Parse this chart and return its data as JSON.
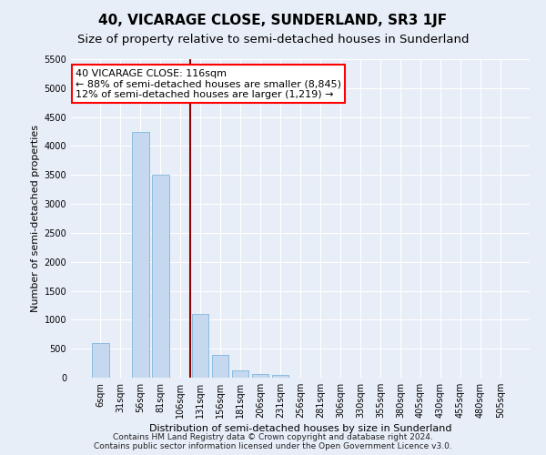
{
  "title": "40, VICARAGE CLOSE, SUNDERLAND, SR3 1JF",
  "subtitle": "Size of property relative to semi-detached houses in Sunderland",
  "xlabel": "Distribution of semi-detached houses by size in Sunderland",
  "ylabel": "Number of semi-detached properties",
  "categories": [
    "6sqm",
    "31sqm",
    "56sqm",
    "81sqm",
    "106sqm",
    "131sqm",
    "156sqm",
    "181sqm",
    "206sqm",
    "231sqm",
    "256sqm",
    "281sqm",
    "306sqm",
    "330sqm",
    "355sqm",
    "380sqm",
    "405sqm",
    "430sqm",
    "455sqm",
    "480sqm",
    "505sqm"
  ],
  "values": [
    600,
    0,
    4250,
    3500,
    0,
    1100,
    400,
    130,
    70,
    55,
    0,
    0,
    0,
    0,
    0,
    0,
    0,
    0,
    0,
    0,
    0
  ],
  "bar_color": "#c5d8f0",
  "bar_edgecolor": "#6baed6",
  "vline_color": "#8b0000",
  "vline_position": 4.5,
  "annotation_text": "40 VICARAGE CLOSE: 116sqm\n← 88% of semi-detached houses are smaller (8,845)\n12% of semi-detached houses are larger (1,219) →",
  "annotation_box_facecolor": "white",
  "annotation_box_edgecolor": "red",
  "ylim": [
    0,
    5500
  ],
  "yticks": [
    0,
    500,
    1000,
    1500,
    2000,
    2500,
    3000,
    3500,
    4000,
    4500,
    5000,
    5500
  ],
  "footnote": "Contains HM Land Registry data © Crown copyright and database right 2024.\nContains public sector information licensed under the Open Government Licence v3.0.",
  "bg_color": "#e8eef8",
  "grid_color": "#ffffff",
  "title_fontsize": 11,
  "subtitle_fontsize": 9.5,
  "axis_label_fontsize": 8,
  "tick_fontsize": 7,
  "annotation_fontsize": 8,
  "footnote_fontsize": 6.5
}
